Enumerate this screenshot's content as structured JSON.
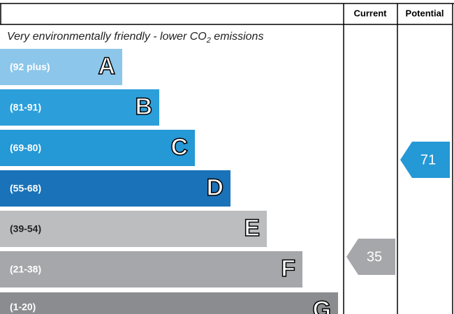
{
  "header": {
    "current": "Current",
    "potential": "Potential"
  },
  "subtitle": {
    "text": "Very environmentally friendly - lower CO",
    "subscript": "2",
    "after": " emissions"
  },
  "bands": [
    {
      "range": "(92 plus)",
      "letter": "A"
    },
    {
      "range": "(81-91)",
      "letter": "B"
    },
    {
      "range": "(69-80)",
      "letter": "C"
    },
    {
      "range": "(55-68)",
      "letter": "D"
    },
    {
      "range": "(39-54)",
      "letter": "E"
    },
    {
      "range": "(21-38)",
      "letter": "F"
    },
    {
      "range": "(1-20)",
      "letter": "G"
    }
  ],
  "current": 35,
  "potential": 71
}
